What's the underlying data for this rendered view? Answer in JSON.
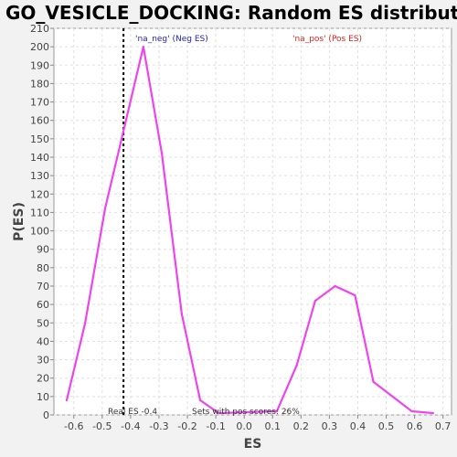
{
  "chart_data": {
    "type": "line",
    "title": "GO_VESICLE_DOCKING: Random ES distribution",
    "xlabel": "ES",
    "ylabel": "P(ES)",
    "xlim": [
      -0.67,
      0.73
    ],
    "ylim": [
      0,
      210
    ],
    "x_ticks": [
      -0.6,
      -0.5,
      -0.4,
      -0.3,
      -0.2,
      -0.1,
      0.0,
      0.1,
      0.2,
      0.3,
      0.4,
      0.5,
      0.6,
      0.7
    ],
    "x_tick_labels": [
      "-0.6",
      "-0.5",
      "-0.4",
      "-0.3",
      "-0.2",
      "-0.1",
      "0.0",
      "0.1",
      "0.2",
      "0.3",
      "0.4",
      "0.5",
      "0.6",
      "0.7"
    ],
    "y_ticks": [
      0,
      10,
      20,
      30,
      40,
      50,
      60,
      70,
      80,
      90,
      100,
      110,
      120,
      130,
      140,
      150,
      160,
      170,
      180,
      190,
      200,
      210
    ],
    "y_tick_labels": [
      "0",
      "10",
      "20",
      "30",
      "40",
      "50",
      "60",
      "70",
      "80",
      "90",
      "100",
      "110",
      "120",
      "130",
      "140",
      "150",
      "160",
      "170",
      "180",
      "190",
      "200",
      "210"
    ],
    "grid": true,
    "series": [
      {
        "color": "#ee44ee",
        "x": [
          -0.625,
          -0.56,
          -0.49,
          -0.355,
          -0.29,
          -0.22,
          -0.155,
          -0.09,
          0.115,
          0.185,
          0.25,
          0.32,
          0.39,
          0.455,
          0.59,
          0.665
        ],
        "y": [
          8,
          50,
          112,
          200,
          142,
          55,
          8,
          1,
          2,
          27,
          62,
          70,
          65,
          18,
          2,
          1
        ]
      }
    ],
    "annotations": {
      "na_neg": {
        "text": "'na_neg' (Neg ES)",
        "color": "#2222cc"
      },
      "na_pos": {
        "text": "'na_pos' (Pos ES)",
        "color": "#dd2222"
      },
      "real_es": {
        "text": "Real ES -0.4",
        "x": -0.425
      },
      "pos_scores": {
        "text": "Sets with pos scores: 26%"
      }
    },
    "real_es_line_x": -0.425
  }
}
